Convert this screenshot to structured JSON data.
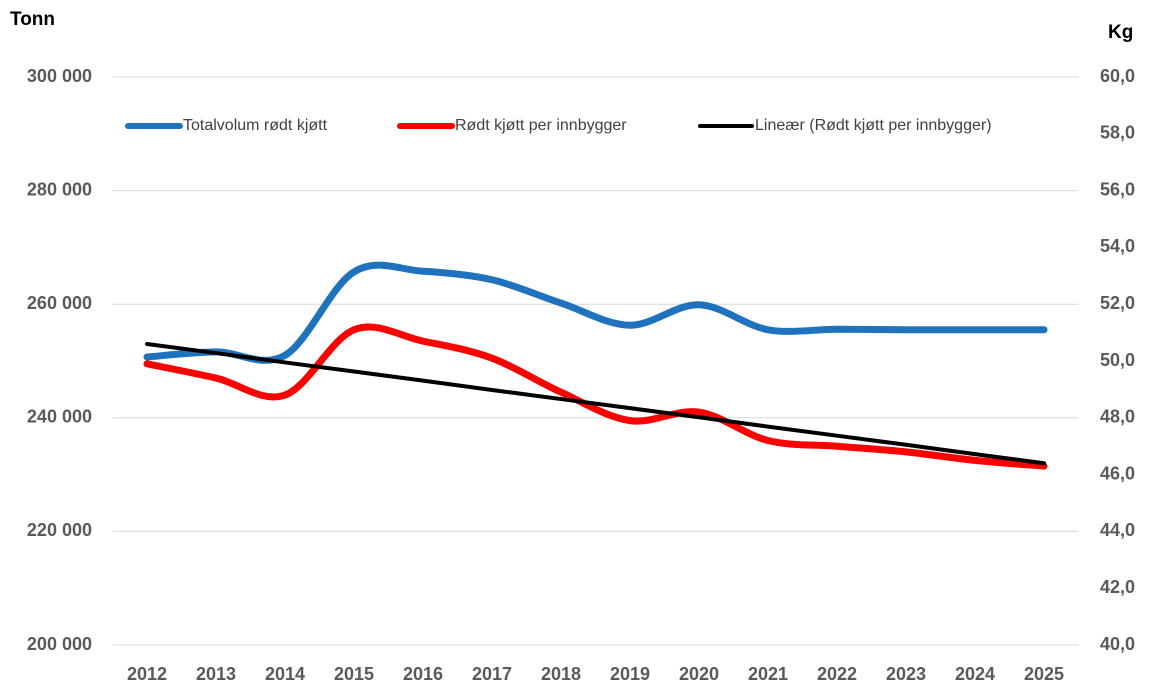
{
  "chart_data": {
    "type": "line",
    "y_label": "Tonn",
    "y2_label": "Kg",
    "categories": [
      "2012",
      "2013",
      "2014",
      "2015",
      "2016",
      "2017",
      "2018",
      "2019",
      "2020",
      "2021",
      "2022",
      "2023",
      "2024",
      "2025"
    ],
    "ylim": [
      200000,
      300000
    ],
    "yticks": [
      {
        "value": 200000,
        "label": "200 000"
      },
      {
        "value": 220000,
        "label": "220 000"
      },
      {
        "value": 240000,
        "label": "240 000"
      },
      {
        "value": 260000,
        "label": "260 000"
      },
      {
        "value": 280000,
        "label": "280 000"
      },
      {
        "value": 300000,
        "label": "300 000"
      }
    ],
    "y2lim": [
      40,
      60
    ],
    "y2ticks": [
      {
        "value": 40,
        "label": "40,0"
      },
      {
        "value": 42,
        "label": "42,0"
      },
      {
        "value": 44,
        "label": "44,0"
      },
      {
        "value": 46,
        "label": "46,0"
      },
      {
        "value": 48,
        "label": "48,0"
      },
      {
        "value": 50,
        "label": "50,0"
      },
      {
        "value": 52,
        "label": "52,0"
      },
      {
        "value": 54,
        "label": "54,0"
      },
      {
        "value": 56,
        "label": "56,0"
      },
      {
        "value": 58,
        "label": "58,0"
      },
      {
        "value": 60,
        "label": "60,0"
      }
    ],
    "grid": true,
    "smooth": true,
    "legend": "top",
    "series": [
      {
        "name": "Totalvolum rødt kjøtt",
        "color": "#1f73be",
        "values": [
          250700,
          251600,
          251000,
          265700,
          265800,
          264300,
          260200,
          256300,
          259900,
          255500,
          255600,
          255500,
          255500,
          255500
        ]
      },
      {
        "name": "Rødt kjøtt per innbygger",
        "color": "#ff0000",
        "axis": "y2",
        "values": [
          49.9,
          49.4,
          48.8,
          51.1,
          50.7,
          50.1,
          48.9,
          47.9,
          48.2,
          47.2,
          47.0,
          46.8,
          46.5,
          46.3
        ]
      },
      {
        "name": "Lineær (Rødt kjøtt per innbygger)",
        "color": "#000000",
        "axis": "y2",
        "smooth": false,
        "values": [
          50.6,
          50.28,
          49.95,
          49.63,
          49.31,
          48.98,
          48.66,
          48.34,
          48.02,
          47.69,
          47.37,
          47.05,
          46.72,
          46.4
        ]
      }
    ]
  }
}
